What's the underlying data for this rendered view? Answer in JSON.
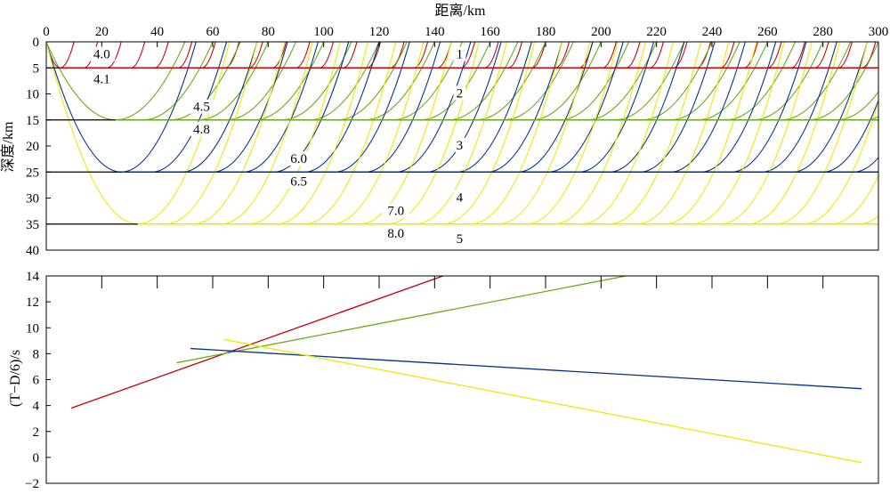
{
  "chart_data": [
    {
      "type": "line",
      "name": "ray-path-model",
      "xlabel": "距离/km",
      "ylabel": "深度/km",
      "xlim": [
        0,
        300
      ],
      "ylim": [
        40,
        0
      ],
      "xticks": [
        0,
        20,
        40,
        60,
        80,
        100,
        120,
        140,
        160,
        180,
        200,
        220,
        240,
        260,
        280,
        300
      ],
      "yticks": [
        0,
        5,
        10,
        15,
        20,
        25,
        30,
        35,
        40
      ],
      "grid": false,
      "interfaces": [
        {
          "depth": 5,
          "color": "#c8000a"
        },
        {
          "depth": 15,
          "color": "#6aaa1e"
        },
        {
          "depth": 25,
          "color": "#00308a"
        },
        {
          "depth": 35,
          "color": "#f2e600"
        }
      ],
      "ray_groups": [
        {
          "layer": 1,
          "color": "#c8000a",
          "turn_depth": 5,
          "turn_x": 5,
          "start": 5,
          "spacing": 8.5,
          "end": 300
        },
        {
          "layer": 2,
          "color": "#6aaa1e",
          "turn_depth": 15,
          "turn_x": 25,
          "start": 25,
          "spacing": 10,
          "end": 300
        },
        {
          "layer": 3,
          "color": "#00308a",
          "turn_depth": 25,
          "turn_x": 27,
          "start": 27,
          "spacing": 11,
          "end": 300
        },
        {
          "layer": 4,
          "color": "#f2e600",
          "turn_depth": 35,
          "turn_x": 33,
          "start": 33,
          "spacing": 10,
          "end": 300
        }
      ],
      "velocity_labels": [
        {
          "text": "4.0",
          "x": 20,
          "y": 3
        },
        {
          "text": "4.1",
          "x": 20,
          "y": 7.8
        },
        {
          "text": "4.5",
          "x": 56,
          "y": 13.1
        },
        {
          "text": "4.8",
          "x": 56,
          "y": 17.4
        },
        {
          "text": "6.0",
          "x": 91,
          "y": 23.1
        },
        {
          "text": "6.5",
          "x": 91,
          "y": 27.4
        },
        {
          "text": "7.0",
          "x": 126,
          "y": 33.1
        },
        {
          "text": "8.0",
          "x": 126,
          "y": 37.4
        }
      ],
      "layer_labels": [
        {
          "text": "1",
          "x": 149,
          "y": 3
        },
        {
          "text": "2",
          "x": 149,
          "y": 10.5
        },
        {
          "text": "3",
          "x": 149,
          "y": 20.5
        },
        {
          "text": "4",
          "x": 149,
          "y": 30.5
        },
        {
          "text": "5",
          "x": 149,
          "y": 38.5
        }
      ]
    },
    {
      "type": "line",
      "name": "reduced-traveltime",
      "xlabel": "",
      "ylabel": "(T−D/6)/s",
      "xlim": [
        0,
        300
      ],
      "ylim": [
        -2,
        14
      ],
      "yticks": [
        -2,
        0,
        2,
        4,
        6,
        8,
        10,
        12,
        14
      ],
      "xticks": [
        20,
        40,
        60,
        80,
        100,
        120,
        140,
        160,
        180,
        200,
        220,
        240,
        260,
        280
      ],
      "grid": false,
      "series": [
        {
          "color": "#c8000a",
          "x": [
            9,
            143
          ],
          "y": [
            3.8,
            14.0
          ]
        },
        {
          "color": "#6aaa1e",
          "x": [
            47,
            209
          ],
          "y": [
            7.3,
            14.0
          ]
        },
        {
          "color": "#00308a",
          "x": [
            52,
            294
          ],
          "y": [
            8.4,
            5.3
          ]
        },
        {
          "color": "#f2e600",
          "x": [
            64,
            294
          ],
          "y": [
            9.1,
            -0.4
          ]
        }
      ]
    }
  ]
}
